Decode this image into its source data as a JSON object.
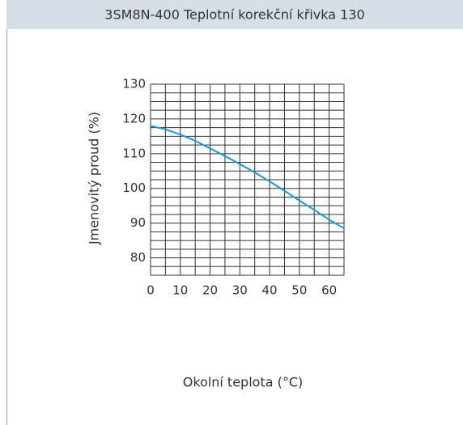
{
  "chart_data": {
    "type": "line",
    "title": "3SM8N-400 Teplotní korekční křivka 130",
    "ylabel": "Jmenovitý proud (%)",
    "xlabel": "Okolní teplota (°C)",
    "x": [
      0,
      5,
      10,
      15,
      20,
      25,
      30,
      35,
      40,
      45,
      50,
      55,
      60,
      65
    ],
    "series": [
      {
        "color": "#1a9ad6",
        "values": [
          118,
          117,
          115.5,
          113.7,
          111.5,
          109.3,
          107,
          104.6,
          102,
          99.3,
          96.5,
          93.8,
          91,
          88.5
        ]
      }
    ],
    "xlim": [
      0,
      65
    ],
    "xticks": [
      0,
      10,
      20,
      30,
      40,
      50,
      60
    ],
    "ylim": [
      75,
      130
    ],
    "yticks": [
      80,
      90,
      100,
      110,
      120,
      130
    ],
    "xgrid": [
      0,
      5,
      10,
      15,
      20,
      25,
      30,
      35,
      40,
      45,
      50,
      55,
      60,
      65
    ],
    "ygrid": [
      75,
      77.5,
      80,
      82.5,
      85,
      87.5,
      90,
      92.5,
      95,
      97.5,
      100,
      102.5,
      105,
      107.5,
      110,
      112.5,
      115,
      117.5,
      120,
      122.5,
      125,
      127.5,
      130
    ],
    "grid": true
  }
}
